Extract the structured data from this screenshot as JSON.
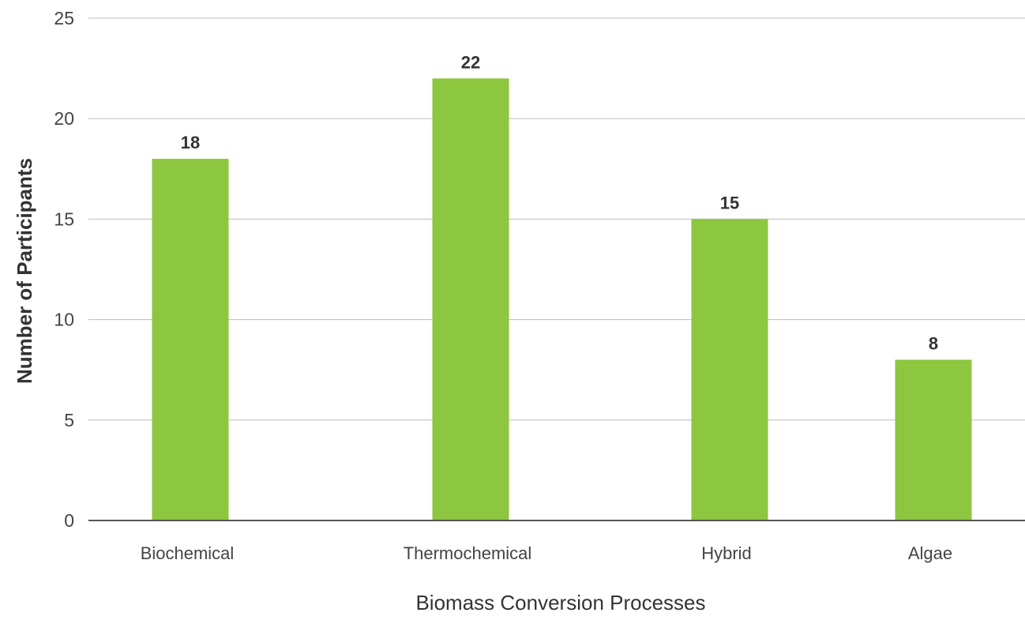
{
  "chart_data": {
    "type": "bar",
    "categories": [
      "Biochemical",
      "Thermochemical",
      "Hybrid",
      "Algae"
    ],
    "values": [
      18,
      22,
      15,
      8
    ],
    "xlabel": "Biomass Conversion Processes",
    "ylabel": "Number of Participants",
    "ylim": [
      0,
      25
    ],
    "yticks": [
      0,
      5,
      10,
      15,
      20,
      25
    ],
    "grid": true,
    "legend": "none",
    "colors": {
      "bar": "#8dc63f",
      "gridline": "#bdbdbd",
      "axis": "#555555"
    }
  }
}
